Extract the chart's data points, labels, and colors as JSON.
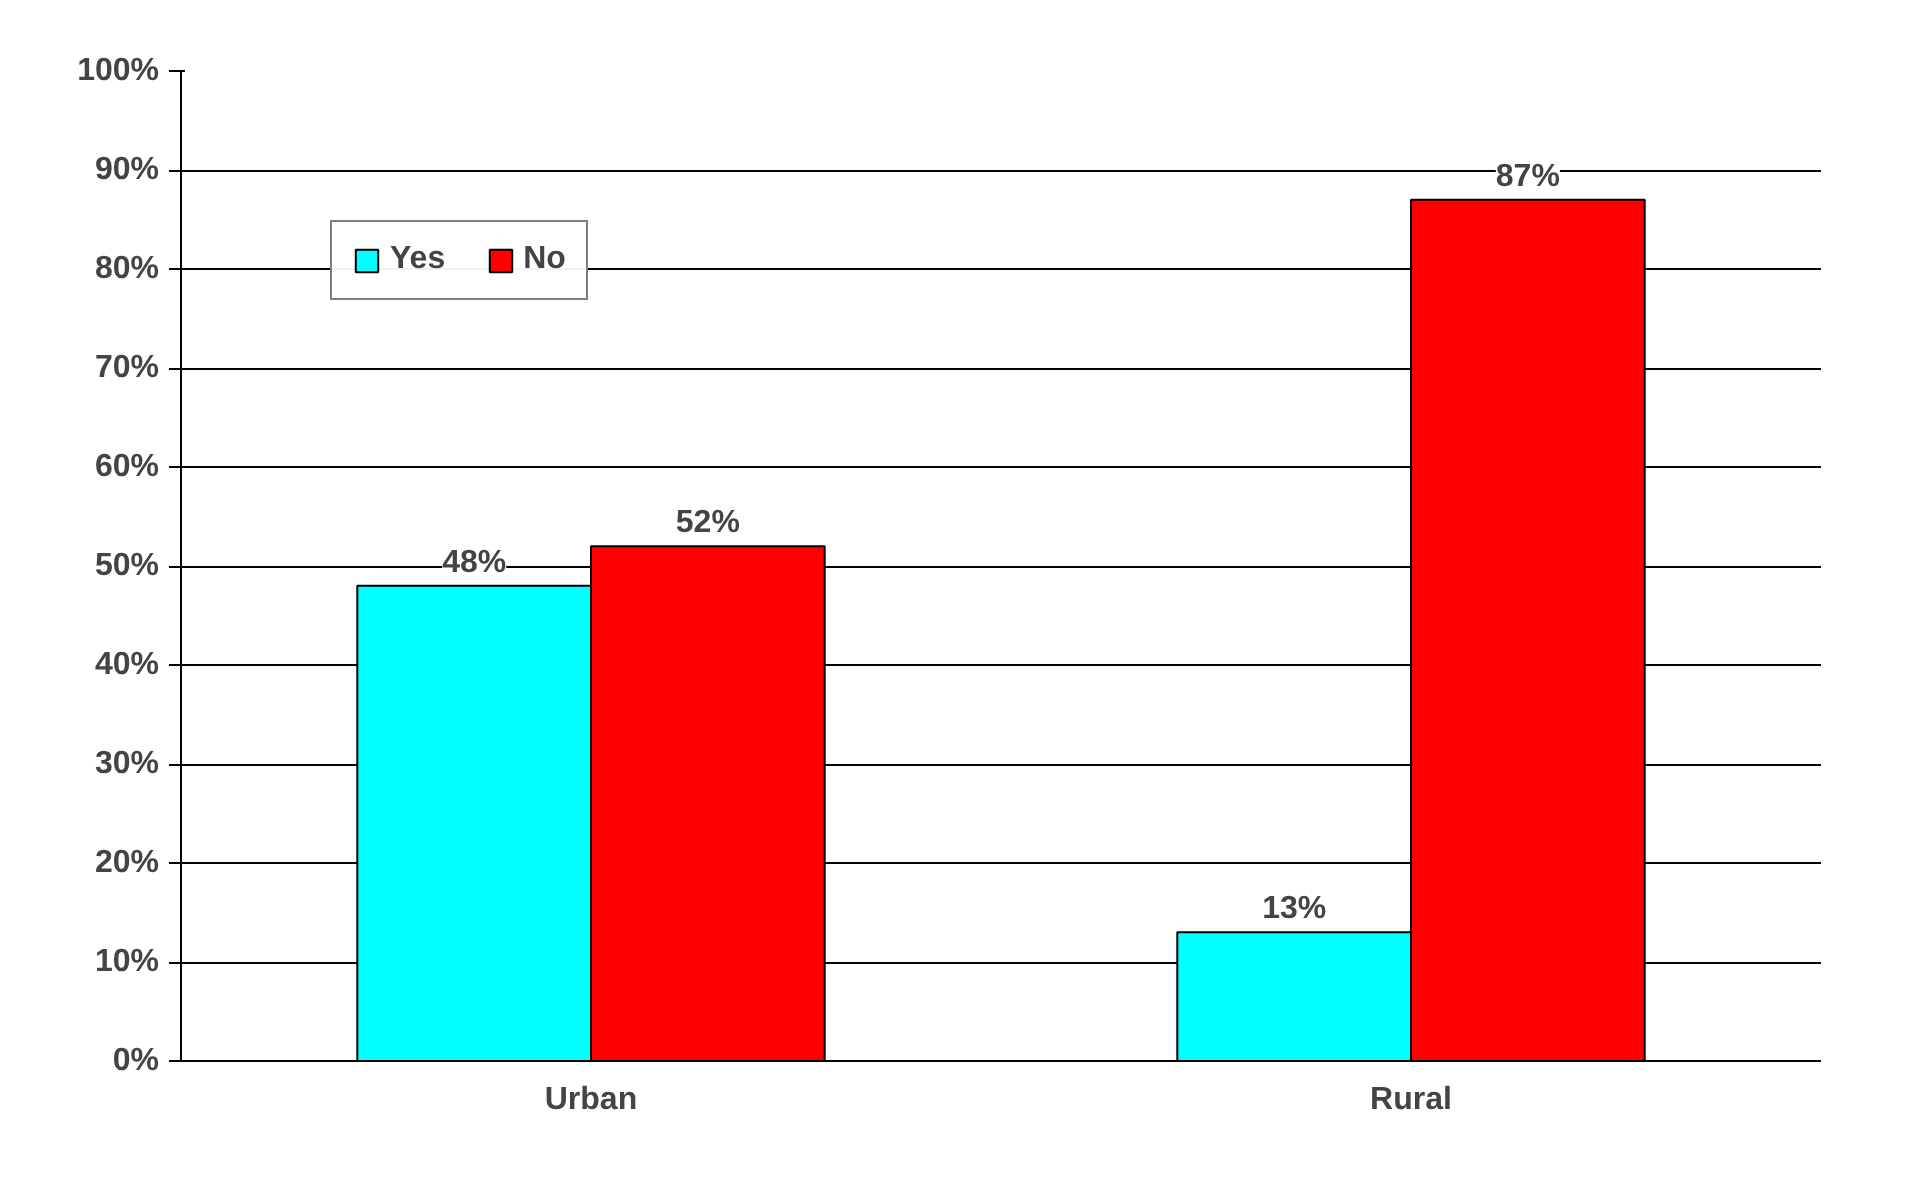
{
  "chart_data": {
    "type": "bar",
    "categories": [
      "Urban",
      "Rural"
    ],
    "series": [
      {
        "name": "Yes",
        "color": "#00ffff",
        "values": [
          48,
          13
        ],
        "value_labels": [
          "48%",
          "13%"
        ]
      },
      {
        "name": "No",
        "color": "#ff0000",
        "values": [
          52,
          87
        ],
        "value_labels": [
          "52%",
          "87%"
        ]
      }
    ],
    "ylim": [
      0,
      100
    ],
    "yticks": [
      {
        "value": 0,
        "label": "0%"
      },
      {
        "value": 10,
        "label": "10%"
      },
      {
        "value": 20,
        "label": "20%"
      },
      {
        "value": 30,
        "label": "30%"
      },
      {
        "value": 40,
        "label": "40%"
      },
      {
        "value": 50,
        "label": "50%"
      },
      {
        "value": 60,
        "label": "60%"
      },
      {
        "value": 70,
        "label": "70%"
      },
      {
        "value": 80,
        "label": "80%"
      },
      {
        "value": 90,
        "label": "90%"
      },
      {
        "value": 100,
        "label": "100%"
      }
    ],
    "grid": "y",
    "legend": "top left"
  }
}
